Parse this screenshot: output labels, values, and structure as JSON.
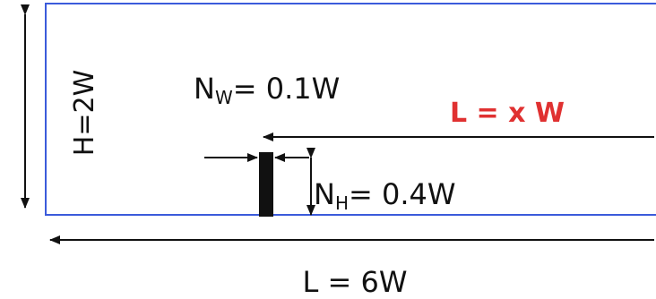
{
  "labels": {
    "height": "H=2W",
    "nozzle_width_main": "N",
    "nozzle_width_sub": "W",
    "nozzle_width_value": "= 0.1W",
    "nozzle_height_main": "N",
    "nozzle_height_sub": "H",
    "nozzle_height_value": "= 0.4W",
    "distance": "L = x W",
    "length": "L = 6W"
  },
  "colors": {
    "domain_border": "#3b5bdb",
    "obstacle": "#111111",
    "arrow": "#111111",
    "highlight": "#e03131"
  }
}
